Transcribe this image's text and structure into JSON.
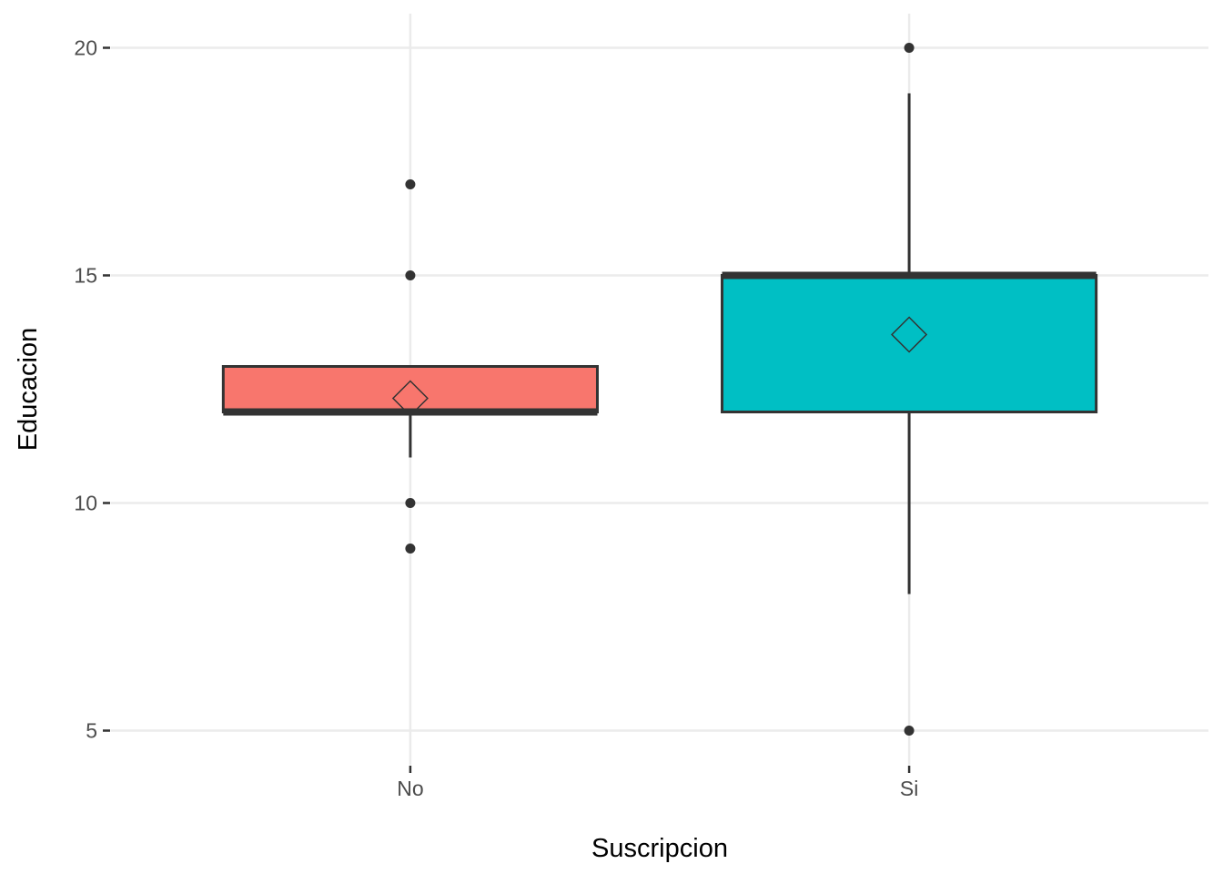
{
  "chart_data": {
    "type": "boxplot",
    "title": "",
    "xlabel": "Suscripcion",
    "ylabel": "Educacion",
    "categories": [
      "No",
      "Si"
    ],
    "y_ticks": [
      "5",
      "10",
      "15",
      "20"
    ],
    "y_tick_values": [
      5,
      10,
      15,
      20
    ],
    "ylim": [
      4.25,
      20.75
    ],
    "grid": "major-horizontal-and-category-vertical",
    "legend": "none",
    "box_width_fraction": 0.75,
    "series": [
      {
        "name": "No",
        "fill_color": "#F8766D",
        "q1": 12,
        "median": 12,
        "q3": 13,
        "whisker_low": 11,
        "whisker_high": 13,
        "mean": 12.3,
        "outliers": [
          9,
          10,
          15,
          17
        ]
      },
      {
        "name": "Si",
        "fill_color": "#00BFC4",
        "q1": 12,
        "median": 15,
        "q3": 15,
        "whisker_low": 8,
        "whisker_high": 19,
        "mean": 13.7,
        "outliers": [
          5,
          20
        ]
      }
    ],
    "style": {
      "background_color": "#FFFFFF",
      "gridline_color": "#EBEBEB",
      "box_border_color": "#333333",
      "median_color": "#333333",
      "whisker_color": "#333333",
      "outlier_color": "#333333",
      "mean_marker": "open-diamond",
      "mean_marker_color": "#333333",
      "tick_mark_color": "#333333",
      "tick_label_color": "#4D4D4D",
      "axis_title_color": "#000000"
    }
  }
}
